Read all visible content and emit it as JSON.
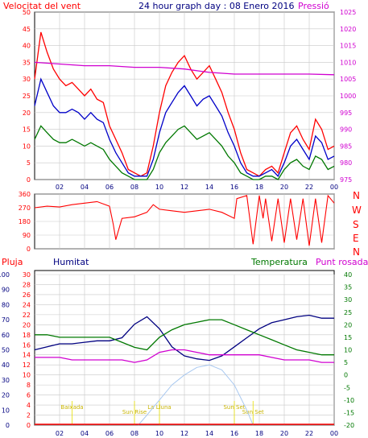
{
  "header": {
    "left_label": "Velocitat del vent",
    "title": "24 hour graph day : 08 Enero 2016",
    "right_label": "Pressió"
  },
  "colors": {
    "red": "#ff0000",
    "blue": "#0000c8",
    "green": "#007800",
    "magenta": "#d000d0",
    "navy": "#000080",
    "grid": "#c8c8c8",
    "yellow": "#e8e000",
    "solar": "#a8c8f0"
  },
  "chart_data": [
    {
      "id": "wind",
      "type": "line",
      "x_ticks": [
        "02",
        "04",
        "06",
        "08",
        "10",
        "12",
        "14",
        "16",
        "18",
        "20",
        "22",
        "00"
      ],
      "y_left_ticks": [
        0,
        5,
        10,
        15,
        20,
        25,
        30,
        35,
        40,
        45,
        50
      ],
      "y_right_ticks": [
        975,
        980,
        985,
        990,
        995,
        1000,
        1005,
        1010,
        1015,
        1020,
        1025
      ],
      "ylim_left": [
        0,
        50
      ],
      "ylim_right": [
        975,
        1025
      ],
      "series": [
        {
          "name": "Velocitat del vent",
          "color": "red",
          "axis": "left",
          "x": [
            0,
            0.5,
            1,
            1.5,
            2,
            2.5,
            3,
            3.5,
            4,
            4.5,
            5,
            5.5,
            6,
            6.5,
            7,
            7.5,
            8,
            8.5,
            9,
            9.5,
            10,
            10.5,
            11,
            11.5,
            12,
            12.5,
            13,
            13.5,
            14,
            14.5,
            15,
            15.5,
            16,
            16.5,
            17,
            17.5,
            18,
            18.5,
            19,
            19.5,
            20,
            20.5,
            21,
            21.5,
            22,
            22.5,
            23,
            23.5,
            24
          ],
          "values": [
            30,
            44,
            38,
            33,
            30,
            28,
            29,
            27,
            25,
            27,
            24,
            23,
            16,
            12,
            8,
            3,
            2,
            1,
            2,
            10,
            20,
            28,
            32,
            35,
            37,
            33,
            30,
            32,
            34,
            30,
            26,
            20,
            15,
            8,
            3,
            2,
            1,
            3,
            4,
            2,
            8,
            14,
            16,
            12,
            9,
            18,
            15,
            9,
            10
          ]
        },
        {
          "name": "blue",
          "color": "blue",
          "axis": "left",
          "x": [
            0,
            0.5,
            1,
            1.5,
            2,
            2.5,
            3,
            3.5,
            4,
            4.5,
            5,
            5.5,
            6,
            6.5,
            7,
            7.5,
            8,
            8.5,
            9,
            9.5,
            10,
            10.5,
            11,
            11.5,
            12,
            12.5,
            13,
            13.5,
            14,
            14.5,
            15,
            15.5,
            16,
            16.5,
            17,
            17.5,
            18,
            18.5,
            19,
            19.5,
            20,
            20.5,
            21,
            21.5,
            22,
            22.5,
            23,
            23.5,
            24
          ],
          "values": [
            22,
            30,
            26,
            22,
            20,
            20,
            21,
            20,
            18,
            20,
            18,
            17,
            12,
            8,
            5,
            2,
            1,
            1,
            1,
            6,
            14,
            20,
            23,
            26,
            28,
            25,
            22,
            24,
            25,
            22,
            19,
            14,
            10,
            5,
            2,
            1,
            1,
            2,
            3,
            1,
            5,
            10,
            12,
            9,
            6,
            13,
            11,
            6,
            7
          ]
        },
        {
          "name": "green",
          "color": "green",
          "axis": "left",
          "x": [
            0,
            0.5,
            1,
            1.5,
            2,
            2.5,
            3,
            3.5,
            4,
            4.5,
            5,
            5.5,
            6,
            6.5,
            7,
            7.5,
            8,
            8.5,
            9,
            9.5,
            10,
            10.5,
            11,
            11.5,
            12,
            12.5,
            13,
            13.5,
            14,
            14.5,
            15,
            15.5,
            16,
            16.5,
            17,
            17.5,
            18,
            18.5,
            19,
            19.5,
            20,
            20.5,
            21,
            21.5,
            22,
            22.5,
            23,
            23.5,
            24
          ],
          "values": [
            12,
            16,
            14,
            12,
            11,
            11,
            12,
            11,
            10,
            11,
            10,
            9,
            6,
            4,
            2,
            1,
            0,
            0,
            0,
            3,
            8,
            11,
            13,
            15,
            16,
            14,
            12,
            13,
            14,
            12,
            10,
            7,
            5,
            2,
            1,
            0,
            0,
            1,
            1,
            0,
            3,
            5,
            6,
            4,
            3,
            7,
            6,
            3,
            4
          ]
        },
        {
          "name": "Pressió",
          "color": "magenta",
          "axis": "right",
          "x": [
            0,
            2,
            4,
            6,
            8,
            10,
            12,
            14,
            16,
            18,
            20,
            22,
            24
          ],
          "values": [
            1010,
            1009.5,
            1009,
            1009,
            1008.5,
            1008.5,
            1008,
            1007,
            1006.5,
            1006.5,
            1006.5,
            1006.5,
            1006.3
          ]
        }
      ]
    },
    {
      "id": "direction",
      "type": "line",
      "y_ticks": [
        0,
        90,
        180,
        270,
        360
      ],
      "ylim": [
        0,
        360
      ],
      "dir_labels": [
        "N",
        "W",
        "S",
        "E",
        "N"
      ],
      "series": [
        {
          "name": "direction",
          "color": "red",
          "x": [
            0,
            1,
            2,
            3,
            4,
            5,
            6,
            6.3,
            6.5,
            7,
            8,
            9,
            9.5,
            10,
            11,
            12,
            13,
            14,
            15,
            16,
            16.2,
            17,
            17.5,
            18,
            18.3,
            18.5,
            19,
            19.5,
            20,
            20.5,
            21,
            21.5,
            22,
            22.5,
            23,
            23.5,
            24
          ],
          "values": [
            270,
            280,
            275,
            290,
            300,
            310,
            280,
            160,
            60,
            200,
            210,
            240,
            290,
            260,
            250,
            240,
            250,
            260,
            240,
            200,
            330,
            350,
            30,
            350,
            200,
            330,
            50,
            330,
            40,
            330,
            60,
            330,
            20,
            330,
            40,
            350,
            300
          ]
        }
      ]
    },
    {
      "id": "temperature",
      "type": "line",
      "y_left_ticks": [
        0,
        10,
        20,
        30,
        40,
        50,
        60,
        70,
        80,
        90,
        100
      ],
      "y_rain_ticks": [
        0,
        2,
        4,
        6,
        8,
        10,
        12,
        14,
        16,
        18,
        20,
        22,
        24,
        26,
        28,
        30
      ],
      "y_right_ticks": [
        -20,
        -15,
        -10,
        -5,
        0,
        5,
        10,
        15,
        20,
        25,
        30,
        35,
        40
      ],
      "ylim_humidity": [
        0,
        100
      ],
      "ylim_temp": [
        -20,
        40
      ],
      "labels": {
        "rain": "Pluja",
        "humidity": "Humitat",
        "temperature": "Temperatura",
        "dewpoint": "Punt rosada"
      },
      "events": [
        {
          "label": "Baixada",
          "x": 3
        },
        {
          "label": "Sun Rise",
          "x": 8
        },
        {
          "label": "La Lluna",
          "x": 10
        },
        {
          "label": "Sun Set",
          "x": 17.5
        },
        {
          "label": "Sun Set",
          "x": 16
        }
      ],
      "series": [
        {
          "name": "Humitat",
          "color": "navy",
          "axis": "humidity",
          "x": [
            0,
            1,
            2,
            3,
            4,
            5,
            6,
            7,
            8,
            9,
            10,
            11,
            12,
            13,
            14,
            15,
            16,
            17,
            18,
            19,
            20,
            21,
            22,
            23,
            24
          ],
          "values": [
            50,
            52,
            54,
            54,
            55,
            56,
            56,
            58,
            67,
            72,
            64,
            52,
            46,
            44,
            43,
            46,
            52,
            58,
            64,
            68,
            70,
            72,
            73,
            71,
            71
          ]
        },
        {
          "name": "Temperatura",
          "color": "green",
          "axis": "temp",
          "x": [
            0,
            1,
            2,
            3,
            4,
            5,
            6,
            7,
            8,
            9,
            10,
            11,
            12,
            13,
            14,
            15,
            16,
            17,
            18,
            19,
            20,
            21,
            22,
            23,
            24
          ],
          "values": [
            16,
            16,
            15,
            15,
            15,
            15,
            15,
            13,
            11,
            10,
            15,
            18,
            20,
            21,
            22,
            22,
            20,
            18,
            16,
            14,
            12,
            10,
            9,
            8,
            8
          ]
        },
        {
          "name": "Punt rosada",
          "color": "magenta",
          "axis": "temp",
          "x": [
            0,
            1,
            2,
            3,
            4,
            5,
            6,
            7,
            8,
            9,
            10,
            11,
            12,
            13,
            14,
            15,
            16,
            17,
            18,
            19,
            20,
            21,
            22,
            23,
            24
          ],
          "values": [
            7,
            7,
            7,
            6,
            6,
            6,
            6,
            6,
            5,
            6,
            9,
            10,
            10,
            9,
            8,
            8,
            8,
            8,
            8,
            7,
            6,
            6,
            6,
            5,
            5
          ]
        },
        {
          "name": "solar",
          "color": "solar",
          "axis": "temp",
          "x": [
            8.3,
            9,
            10,
            11,
            12,
            13,
            14,
            15,
            16,
            17,
            17.5
          ],
          "values": [
            -20,
            -16,
            -10,
            -4,
            0,
            3,
            4,
            2,
            -4,
            -14,
            -20
          ]
        }
      ]
    }
  ]
}
